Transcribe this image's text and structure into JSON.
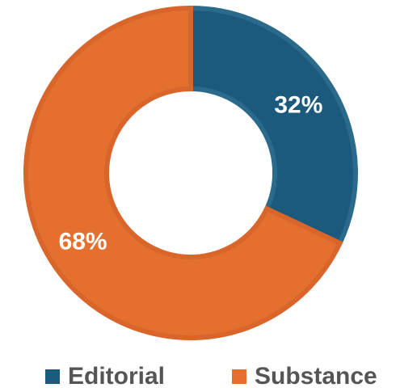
{
  "chart_data": {
    "type": "pie",
    "variant": "donut",
    "categories": [
      "Editorial",
      "Substance"
    ],
    "values": [
      32,
      68
    ],
    "value_labels": [
      "32%",
      "68%"
    ],
    "colors": [
      "#1c5a7d",
      "#e56f2e"
    ],
    "edge_colors": [
      "#2a6b8c",
      "#d9652a"
    ],
    "start_angle_deg": 0,
    "direction": "clockwise",
    "legend_position": "bottom",
    "title": ""
  }
}
